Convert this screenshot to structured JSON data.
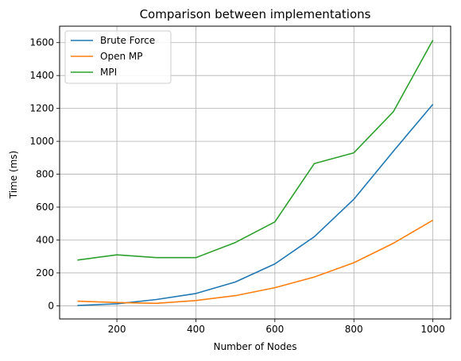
{
  "chart_data": {
    "type": "line",
    "title": "Comparison between implementations",
    "xlabel": "Number of Nodes",
    "ylabel": "Time (ms)",
    "x": [
      100,
      200,
      300,
      400,
      500,
      600,
      700,
      800,
      900,
      1000
    ],
    "xlim": [
      55,
      1045
    ],
    "ylim": [
      -80,
      1700
    ],
    "xticks": [
      200,
      400,
      600,
      800,
      1000
    ],
    "yticks": [
      0,
      200,
      400,
      600,
      800,
      1000,
      1200,
      1400,
      1600
    ],
    "grid": true,
    "legend_position": "top-left",
    "series": [
      {
        "name": "Brute Force",
        "color": "#1f77b4",
        "values": [
          2,
          12,
          38,
          75,
          145,
          255,
          420,
          648,
          940,
          1225
        ]
      },
      {
        "name": "Open MP",
        "color": "#ff7f0e",
        "values": [
          28,
          20,
          15,
          32,
          62,
          110,
          175,
          262,
          380,
          520
        ]
      },
      {
        "name": "MPI",
        "color": "#2ca02c",
        "values": [
          278,
          310,
          293,
          293,
          385,
          510,
          865,
          930,
          1180,
          1615
        ]
      }
    ]
  }
}
